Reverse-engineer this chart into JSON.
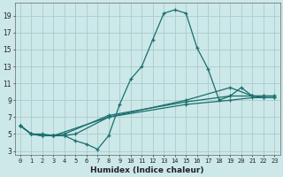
{
  "xlabel": "Humidex (Indice chaleur)",
  "bg_color": "#cce8e8",
  "grid_color": "#aacccc",
  "line_color": "#1a6e6e",
  "xlim": [
    -0.5,
    23.5
  ],
  "ylim": [
    2.5,
    20.5
  ],
  "yticks": [
    3,
    5,
    7,
    9,
    11,
    13,
    15,
    17,
    19
  ],
  "xticks": [
    0,
    1,
    2,
    3,
    4,
    5,
    6,
    7,
    8,
    9,
    10,
    11,
    12,
    13,
    14,
    15,
    16,
    17,
    18,
    19,
    20,
    21,
    22,
    23
  ],
  "series1": [
    [
      0,
      6.0
    ],
    [
      1,
      5.0
    ],
    [
      2,
      5.0
    ],
    [
      3,
      4.8
    ],
    [
      4,
      4.8
    ],
    [
      5,
      4.2
    ],
    [
      6,
      3.8
    ],
    [
      7,
      3.2
    ],
    [
      8,
      4.8
    ],
    [
      9,
      8.5
    ],
    [
      10,
      11.5
    ],
    [
      11,
      13.0
    ],
    [
      12,
      16.2
    ],
    [
      13,
      19.3
    ],
    [
      14,
      19.7
    ],
    [
      15,
      19.3
    ],
    [
      16,
      15.2
    ],
    [
      17,
      12.7
    ],
    [
      18,
      9.0
    ],
    [
      19,
      9.5
    ],
    [
      20,
      10.5
    ],
    [
      21,
      9.5
    ],
    [
      22,
      9.3
    ],
    [
      23,
      9.3
    ]
  ],
  "series2": [
    [
      0,
      6.0
    ],
    [
      1,
      5.0
    ],
    [
      2,
      4.8
    ],
    [
      3,
      4.8
    ],
    [
      4,
      4.8
    ],
    [
      5,
      5.0
    ],
    [
      8,
      7.0
    ],
    [
      15,
      9.0
    ],
    [
      19,
      10.5
    ],
    [
      21,
      9.5
    ],
    [
      22,
      9.5
    ],
    [
      23,
      9.5
    ]
  ],
  "series3": [
    [
      0,
      6.0
    ],
    [
      1,
      5.0
    ],
    [
      2,
      4.8
    ],
    [
      3,
      4.8
    ],
    [
      4,
      5.0
    ],
    [
      8,
      7.2
    ],
    [
      15,
      8.8
    ],
    [
      19,
      9.5
    ],
    [
      21,
      9.5
    ],
    [
      22,
      9.5
    ],
    [
      23,
      9.5
    ]
  ],
  "series4": [
    [
      0,
      6.0
    ],
    [
      1,
      5.0
    ],
    [
      2,
      4.8
    ],
    [
      3,
      4.8
    ],
    [
      8,
      7.0
    ],
    [
      15,
      8.5
    ],
    [
      19,
      9.0
    ],
    [
      21,
      9.3
    ],
    [
      22,
      9.3
    ],
    [
      23,
      9.3
    ]
  ]
}
